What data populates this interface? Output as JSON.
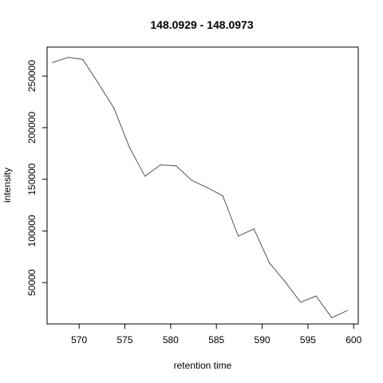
{
  "chart_data": {
    "type": "line",
    "title": "148.0929 - 148.0973",
    "xlabel": "retention time",
    "ylabel": "intensity",
    "xlim": [
      566.5,
      600.5
    ],
    "ylim": [
      10000,
      278000
    ],
    "x_ticks": [
      570,
      575,
      580,
      585,
      590,
      595,
      600
    ],
    "y_ticks": [
      50000,
      100000,
      150000,
      200000,
      250000
    ],
    "x_tick_labels": [
      "570",
      "575",
      "580",
      "585",
      "590",
      "595",
      "600"
    ],
    "y_tick_labels": [
      "50000",
      "100000",
      "150000",
      "200000",
      "250000"
    ],
    "grid": false,
    "series": [
      {
        "x": [
          567.1,
          568.8,
          570.4,
          572.1,
          573.8,
          575.5,
          577.2,
          578.9,
          580.6,
          582.3,
          584.0,
          585.7,
          587.4,
          589.1,
          590.8,
          592.5,
          594.2,
          595.9,
          597.6,
          599.3
        ],
        "y": [
          263000,
          268000,
          266000,
          243000,
          219000,
          181000,
          153000,
          164000,
          163000,
          149000,
          142000,
          134000,
          95000,
          102000,
          69000,
          51000,
          31000,
          37000,
          16000,
          23000
        ],
        "color": "#555555"
      }
    ]
  }
}
